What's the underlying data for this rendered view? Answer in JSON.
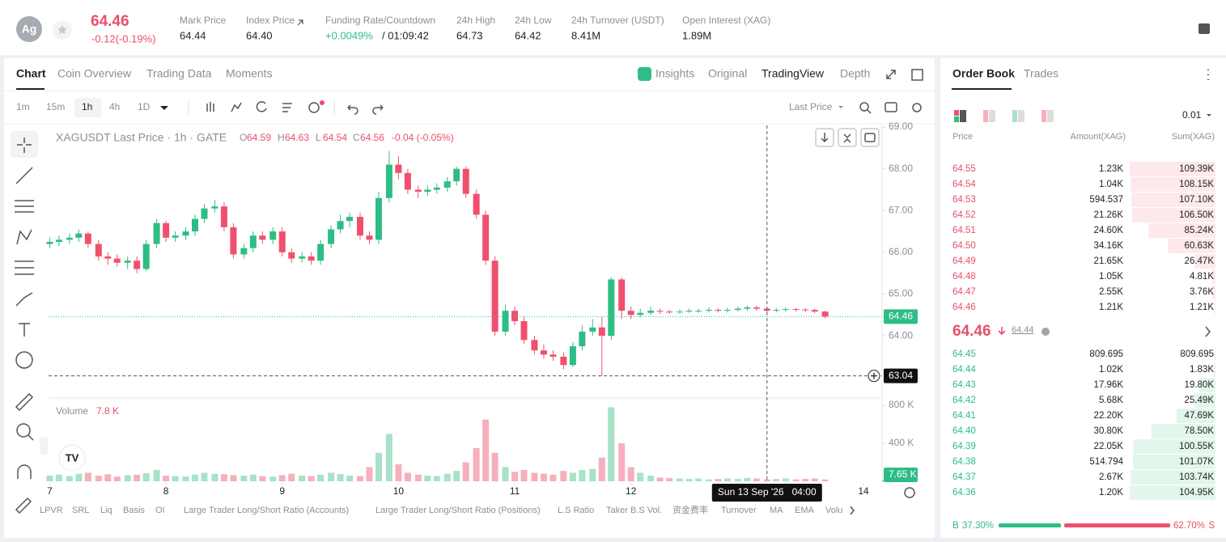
{
  "header": {
    "avatar": "Ag",
    "price": "64.46",
    "change": "-0.12(-0.19%)",
    "stats": [
      {
        "label": "Mark Price",
        "value": "64.44"
      },
      {
        "label": "Index Price",
        "value": "64.40"
      },
      {
        "label": "Funding Rate/Countdown",
        "value": "+0.0049%",
        "extra": "/ 01:09:42"
      },
      {
        "label": "24h High",
        "value": "64.73"
      },
      {
        "label": "24h Low",
        "value": "64.42"
      },
      {
        "label": "24h Turnover (USDT)",
        "value": "8.41M"
      },
      {
        "label": "Open Interest (XAG)",
        "value": "1.89M"
      }
    ]
  },
  "chart_tabs": [
    "Chart",
    "Coin Overview",
    "Trading Data",
    "Moments"
  ],
  "view_tabs": [
    "Insights",
    "Original",
    "TradingView",
    "Depth"
  ],
  "intervals": [
    "1m",
    "15m",
    "1h",
    "4h",
    "1D"
  ],
  "price_source": "Last Price",
  "legend": {
    "title": "XAGUSDT Last Price · 1h · GATE",
    "ohlc": [
      {
        "key": "O",
        "value": "64.59"
      },
      {
        "key": "H",
        "value": "64.63"
      },
      {
        "key": "L",
        "value": "64.54"
      },
      {
        "key": "C",
        "value": "64.56"
      }
    ],
    "change": "-0.04 (-0.05%)",
    "volume_label": "Volume",
    "volume_value": "7.8 K"
  },
  "indicators": [
    "LPVR",
    "SRL",
    "Liq",
    "Basis",
    "OI",
    "Large Trader Long/Short Ratio (Accounts)",
    "Large Trader Long/Short Ratio (Positions)",
    "L.S Ratio",
    "Taker B.S Vol.",
    "资金费率",
    "Turnover",
    "MA",
    "EMA",
    "Volu"
  ],
  "chart_data": {
    "type": "candlestick",
    "x": [
      7,
      7.08,
      7.17,
      7.25,
      7.33,
      7.42,
      7.5,
      7.58,
      7.67,
      7.75,
      7.83,
      7.92,
      8,
      8.08,
      8.17,
      8.25,
      8.33,
      8.42,
      8.5,
      8.58,
      8.67,
      8.75,
      8.83,
      8.92,
      9,
      9.08,
      9.17,
      9.25,
      9.33,
      9.42,
      9.5,
      9.58,
      9.67,
      9.75,
      9.83,
      9.92,
      10,
      10.08,
      10.17,
      10.25,
      10.33,
      10.42,
      10.5,
      10.58,
      10.67,
      10.75,
      10.83,
      10.92,
      11,
      11.08,
      11.17,
      11.25,
      11.33,
      11.42,
      11.5,
      11.58,
      11.67,
      11.75,
      11.83,
      11.92,
      12,
      12.08,
      12.17,
      12.25,
      12.33,
      12.42,
      12.5,
      12.58,
      12.67,
      12.75,
      12.83,
      12.92,
      13,
      13.08,
      13.17,
      13.25,
      13.33,
      13.42,
      13.5,
      13.58,
      13.67
    ],
    "open": [
      66.2,
      66.25,
      66.3,
      66.35,
      66.45,
      66.2,
      65.9,
      65.85,
      65.75,
      65.8,
      65.6,
      66.2,
      66.7,
      66.35,
      66.4,
      66.5,
      66.8,
      67.05,
      67.1,
      66.6,
      65.95,
      66.1,
      66.4,
      66.3,
      66.5,
      66.0,
      65.85,
      65.9,
      65.8,
      66.2,
      66.55,
      66.75,
      66.85,
      66.4,
      66.3,
      67.3,
      68.1,
      67.9,
      67.5,
      67.45,
      67.5,
      67.55,
      67.7,
      68.0,
      67.4,
      66.9,
      65.8,
      64.1,
      64.6,
      64.35,
      63.9,
      63.65,
      63.55,
      63.5,
      63.3,
      63.75,
      64.1,
      64.2,
      64.0,
      65.35,
      64.6,
      64.5,
      64.55,
      64.6,
      64.58,
      64.57,
      64.58,
      64.6,
      64.6,
      64.62,
      64.6,
      64.62,
      64.65,
      64.68,
      64.65,
      64.6,
      64.62,
      64.64,
      64.63,
      64.62,
      64.58
    ],
    "high": [
      66.35,
      66.4,
      66.45,
      66.55,
      66.5,
      66.3,
      66.0,
      65.95,
      65.9,
      65.9,
      66.3,
      66.8,
      66.75,
      66.5,
      66.6,
      66.9,
      67.15,
      67.25,
      67.2,
      66.7,
      66.2,
      66.5,
      66.5,
      66.6,
      66.6,
      66.1,
      66.0,
      66.0,
      66.3,
      66.65,
      66.9,
      66.95,
      66.95,
      66.5,
      67.45,
      68.42,
      68.3,
      68.0,
      67.6,
      67.6,
      67.65,
      67.8,
      68.05,
      68.05,
      67.5,
      67.0,
      65.9,
      64.75,
      64.7,
      64.45,
      64.0,
      63.8,
      63.65,
      63.6,
      63.85,
      64.25,
      64.4,
      64.45,
      65.4,
      65.4,
      64.7,
      64.65,
      64.7,
      64.65,
      64.63,
      64.63,
      64.65,
      64.65,
      64.68,
      64.66,
      64.67,
      64.7,
      64.72,
      64.72,
      64.68,
      64.66,
      64.68,
      64.67,
      64.66,
      64.65,
      64.6
    ],
    "low": [
      66.1,
      66.15,
      66.2,
      66.25,
      66.1,
      65.8,
      65.7,
      65.65,
      65.6,
      65.5,
      65.55,
      66.1,
      66.25,
      66.25,
      66.3,
      66.4,
      66.7,
      66.95,
      66.5,
      65.85,
      65.85,
      66.0,
      66.2,
      66.2,
      65.9,
      65.75,
      65.75,
      65.7,
      65.7,
      66.1,
      66.45,
      66.6,
      66.3,
      66.2,
      66.2,
      67.2,
      67.75,
      67.4,
      67.3,
      67.35,
      67.4,
      67.45,
      67.6,
      67.3,
      66.8,
      65.7,
      64.0,
      64.0,
      64.25,
      63.8,
      63.55,
      63.45,
      63.4,
      63.2,
      63.25,
      63.65,
      64.0,
      63.04,
      63.9,
      64.4,
      64.4,
      64.45,
      64.5,
      64.52,
      64.52,
      64.53,
      64.55,
      64.55,
      64.56,
      64.56,
      64.56,
      64.58,
      64.6,
      64.6,
      64.56,
      64.56,
      64.58,
      64.58,
      64.57,
      64.54,
      64.42
    ],
    "close": [
      66.25,
      66.3,
      66.35,
      66.45,
      66.2,
      65.9,
      65.85,
      65.75,
      65.8,
      65.6,
      66.2,
      66.7,
      66.35,
      66.4,
      66.5,
      66.8,
      67.05,
      67.1,
      66.6,
      65.95,
      66.1,
      66.4,
      66.3,
      66.5,
      66.0,
      65.85,
      65.9,
      65.8,
      66.2,
      66.55,
      66.75,
      66.85,
      66.4,
      66.3,
      67.3,
      68.1,
      67.9,
      67.5,
      67.45,
      67.5,
      67.55,
      67.7,
      68.0,
      67.4,
      66.9,
      65.8,
      64.1,
      64.6,
      64.35,
      63.9,
      63.65,
      63.55,
      63.5,
      63.3,
      63.75,
      64.1,
      64.2,
      64.0,
      65.35,
      64.6,
      64.5,
      64.55,
      64.6,
      64.58,
      64.57,
      64.58,
      64.6,
      64.6,
      64.62,
      64.6,
      64.62,
      64.65,
      64.68,
      64.65,
      64.6,
      64.62,
      64.64,
      64.63,
      64.62,
      64.58,
      64.46
    ],
    "volume": [
      60,
      70,
      55,
      80,
      90,
      60,
      75,
      50,
      65,
      70,
      85,
      120,
      60,
      55,
      50,
      70,
      90,
      80,
      75,
      65,
      60,
      70,
      55,
      50,
      65,
      80,
      60,
      55,
      70,
      90,
      75,
      60,
      55,
      150,
      300,
      500,
      180,
      90,
      70,
      60,
      55,
      80,
      110,
      200,
      350,
      650,
      300,
      150,
      100,
      120,
      90,
      80,
      70,
      110,
      90,
      120,
      130,
      250,
      780,
      400,
      150,
      90,
      60,
      40,
      35,
      30,
      25,
      30,
      20,
      25,
      30,
      25,
      35,
      30,
      20,
      25,
      30,
      20,
      25,
      30,
      20
    ],
    "up_color": "#2ebd85",
    "down_color": "#f0506e",
    "up_volume_color": "#a8e2c8",
    "down_volume_color": "#f5b0bc",
    "xlim": [
      6.99,
      14.16
    ],
    "xticks": [
      7,
      8,
      9,
      10,
      11,
      12,
      14
    ],
    "ylim": [
      62.51,
      69.04
    ],
    "yticks": [
      {
        "value": 64,
        "label": "64.00"
      },
      {
        "value": 65,
        "label": "65.00"
      },
      {
        "value": 66,
        "label": "66.00"
      },
      {
        "value": 67,
        "label": "67.00"
      },
      {
        "value": 68,
        "label": "68.00"
      },
      {
        "value": 69,
        "label": "69.00"
      }
    ],
    "volume_ylim": [
      0,
      860
    ],
    "volume_yticks": [
      {
        "value": 400,
        "label": "400 K"
      },
      {
        "value": 800,
        "label": "800 K"
      }
    ],
    "last_price": 64.46,
    "last_volume": {
      "value": 7.65,
      "label": "7.65 K"
    },
    "crosshair_price": 63.04,
    "crosshair_x": {
      "value": 13.17,
      "label": "Sun 13 Sep '26   04:00"
    }
  },
  "order_book": {
    "tabs": [
      "Order Book",
      "Trades"
    ],
    "precision": "0.01",
    "columns": [
      "Price",
      "Amount(XAG)",
      "Sum(XAG)"
    ],
    "asks": [
      [
        "64.55",
        "1.23K",
        "109.39K"
      ],
      [
        "64.54",
        "1.04K",
        "108.15K"
      ],
      [
        "64.53",
        "594.537",
        "107.10K"
      ],
      [
        "64.52",
        "21.26K",
        "106.50K"
      ],
      [
        "64.51",
        "24.60K",
        "85.24K"
      ],
      [
        "64.50",
        "34.16K",
        "60.63K"
      ],
      [
        "64.49",
        "21.65K",
        "26.47K"
      ],
      [
        "64.48",
        "1.05K",
        "4.81K"
      ],
      [
        "64.47",
        "2.55K",
        "3.76K"
      ],
      [
        "64.46",
        "1.21K",
        "1.21K"
      ]
    ],
    "mid_price": "64.46",
    "mark_price": "64.44",
    "bids": [
      [
        "64.45",
        "809.695",
        "809.695"
      ],
      [
        "64.44",
        "1.02K",
        "1.83K"
      ],
      [
        "64.43",
        "17.96K",
        "19.80K"
      ],
      [
        "64.42",
        "5.68K",
        "25.49K"
      ],
      [
        "64.41",
        "22.20K",
        "47.69K"
      ],
      [
        "64.40",
        "30.80K",
        "78.50K"
      ],
      [
        "64.39",
        "22.05K",
        "100.55K"
      ],
      [
        "64.38",
        "514.794",
        "101.07K"
      ],
      [
        "64.37",
        "2.67K",
        "103.74K"
      ],
      [
        "64.36",
        "1.20K",
        "104.95K"
      ]
    ],
    "buy_label": "B",
    "buy_ratio": "37.30%",
    "sell_ratio": "62.70%",
    "sell_label": "S"
  }
}
